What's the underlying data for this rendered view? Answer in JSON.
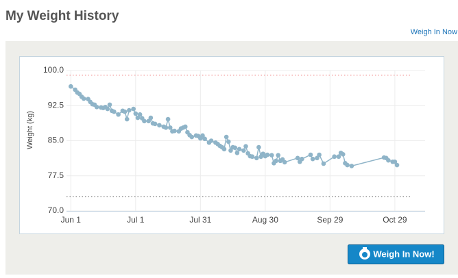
{
  "header": {
    "title": "My Weight History",
    "link": "Weigh In Now"
  },
  "chart_data": {
    "type": "line",
    "ylabel": "Weight (kg)",
    "x": [
      0,
      2,
      3,
      4,
      5,
      6,
      8,
      9,
      10,
      11,
      12,
      14,
      15,
      16,
      17,
      18,
      19,
      20,
      22,
      24,
      25,
      26,
      27,
      29,
      30,
      31,
      32,
      33,
      34,
      36,
      37,
      38,
      39,
      41,
      43,
      44,
      45,
      46,
      47,
      48,
      50,
      51,
      52,
      53,
      54,
      55,
      56,
      58,
      59,
      60,
      61,
      62,
      64,
      65,
      67,
      68,
      69,
      70,
      71,
      72,
      73,
      74,
      75,
      76,
      77,
      78,
      80,
      81,
      82,
      83,
      84,
      86,
      87,
      88,
      89,
      90,
      91,
      93,
      94,
      95,
      96,
      97,
      98,
      99,
      105,
      106,
      107,
      111,
      112,
      114,
      115,
      117,
      122,
      124,
      125,
      126,
      127,
      128,
      130,
      145,
      146,
      147,
      149,
      150,
      151
    ],
    "series": [
      {
        "name": "Weight",
        "color": "#8fb4c8",
        "values": [
          96.6,
          95.9,
          95.3,
          95.0,
          94.4,
          94.0,
          93.9,
          93.3,
          92.8,
          92.7,
          92.2,
          92.1,
          92.0,
          92.2,
          91.8,
          92.7,
          91.4,
          91.2,
          90.6,
          91.4,
          91.2,
          89.6,
          91.5,
          91.8,
          90.8,
          89.9,
          90.6,
          89.8,
          89.2,
          89.2,
          89.9,
          88.7,
          88.6,
          88.3,
          88.0,
          87.8,
          89.6,
          87.8,
          87.0,
          87.1,
          87.0,
          87.6,
          87.8,
          88.0,
          86.8,
          86.2,
          85.8,
          86.1,
          86.0,
          85.5,
          86.1,
          85.4,
          84.6,
          85.0,
          84.6,
          84.3,
          83.9,
          83.6,
          83.2,
          85.8,
          84.8,
          82.9,
          83.6,
          83.5,
          82.4,
          83.2,
          82.9,
          83.8,
          82.3,
          81.7,
          81.6,
          81.3,
          83.6,
          81.6,
          82.2,
          81.7,
          82.0,
          81.9,
          80.2,
          80.7,
          81.9,
          80.7,
          81.0,
          80.4,
          81.3,
          80.5,
          81.1,
          82.0,
          81.1,
          81.3,
          82.0,
          80.1,
          81.6,
          81.6,
          82.4,
          82.1,
          80.2,
          79.8,
          79.6,
          81.4,
          81.3,
          80.8,
          80.5,
          80.5,
          79.8
        ]
      }
    ],
    "xlim": [
      -2,
      164
    ],
    "xticks": [
      {
        "value": 0,
        "label": "Jun 1"
      },
      {
        "value": 30,
        "label": "Jul 1"
      },
      {
        "value": 60,
        "label": "Jul 31"
      },
      {
        "value": 90,
        "label": "Aug 30"
      },
      {
        "value": 120,
        "label": "Sep 29"
      },
      {
        "value": 150,
        "label": "Oct 29"
      }
    ],
    "ylim": [
      70,
      100
    ],
    "yticks": [
      {
        "value": 70,
        "label": "70.0"
      },
      {
        "value": 77.5,
        "label": "77.5"
      },
      {
        "value": 85,
        "label": "85.0"
      },
      {
        "value": 92.5,
        "label": "92.5"
      },
      {
        "value": 100,
        "label": "100.0"
      }
    ],
    "grid": true,
    "reference_lines": [
      {
        "value": 99,
        "color": "#f08080"
      },
      {
        "value": 73,
        "color": "#555555"
      }
    ]
  },
  "button": {
    "label": "Weigh In Now!"
  }
}
